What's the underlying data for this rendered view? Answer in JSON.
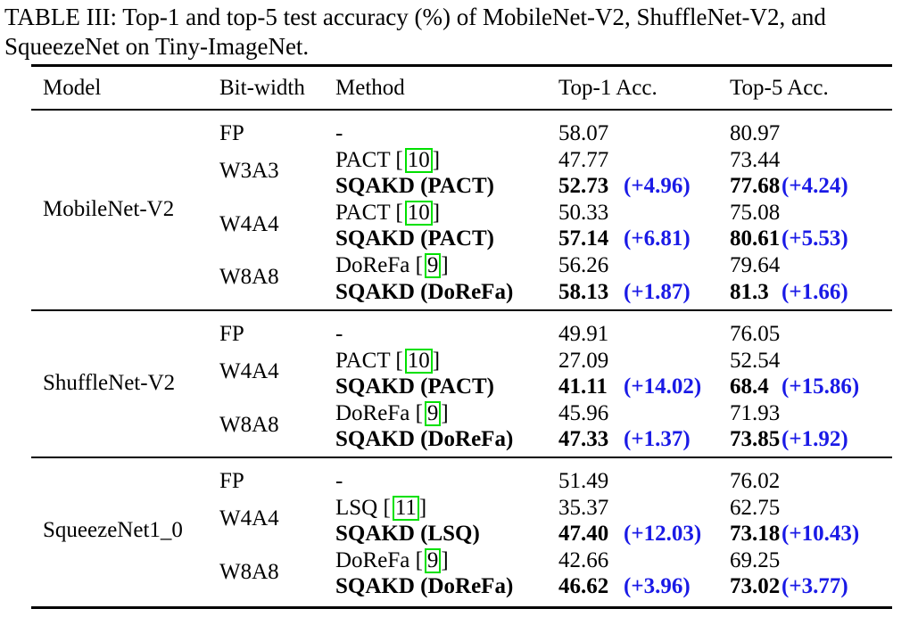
{
  "caption": "TABLE III: Top-1 and top-5 test accuracy (%) of MobileNet-V2, ShuffleNet-V2, and SqueezeNet on Tiny-ImageNet.",
  "headers": [
    "Model",
    "Bit-width",
    "Method",
    "Top-1 Acc.",
    "Top-5 Acc."
  ],
  "groups": [
    {
      "model": "MobileNet-V2",
      "rows": [
        {
          "bit": "FP",
          "method": "-",
          "ref": "",
          "top1": "58.07",
          "d1": "",
          "top5": "80.97",
          "d5": "",
          "bold": false
        },
        {
          "bit": "W3A3",
          "method": "PACT",
          "ref": "10",
          "top1": "47.77",
          "d1": "",
          "top5": "73.44",
          "d5": "",
          "bold": false
        },
        {
          "bit": "",
          "method": "SQAKD (PACT)",
          "ref": "",
          "top1": "52.73",
          "d1": "(+4.96)",
          "top5": "77.68",
          "d5": "(+4.24)",
          "bold": true
        },
        {
          "bit": "W4A4",
          "method": "PACT",
          "ref": "10",
          "top1": "50.33",
          "d1": "",
          "top5": "75.08",
          "d5": "",
          "bold": false
        },
        {
          "bit": "",
          "method": "SQAKD (PACT)",
          "ref": "",
          "top1": "57.14",
          "d1": "(+6.81)",
          "top5": "80.61",
          "d5": "(+5.53)",
          "bold": true
        },
        {
          "bit": "W8A8",
          "method": "DoReFa",
          "ref": "9",
          "top1": "56.26",
          "d1": "",
          "top5": "79.64",
          "d5": "",
          "bold": false
        },
        {
          "bit": "",
          "method": "SQAKD (DoReFa)",
          "ref": "",
          "top1": "58.13",
          "d1": "(+1.87)",
          "top5": "81.3",
          "d5": "(+1.66)",
          "bold": true
        }
      ]
    },
    {
      "model": "ShuffleNet-V2",
      "rows": [
        {
          "bit": "FP",
          "method": "-",
          "ref": "",
          "top1": "49.91",
          "d1": "",
          "top5": "76.05",
          "d5": "",
          "bold": false
        },
        {
          "bit": "W4A4",
          "method": "PACT",
          "ref": "10",
          "top1": "27.09",
          "d1": "",
          "top5": "52.54",
          "d5": "",
          "bold": false
        },
        {
          "bit": "",
          "method": "SQAKD (PACT)",
          "ref": "",
          "top1": "41.11",
          "d1": "(+14.02)",
          "top5": "68.4",
          "d5": "(+15.86)",
          "bold": true
        },
        {
          "bit": "W8A8",
          "method": "DoReFa",
          "ref": "9",
          "top1": "45.96",
          "d1": "",
          "top5": "71.93",
          "d5": "",
          "bold": false
        },
        {
          "bit": "",
          "method": "SQAKD (DoReFa)",
          "ref": "",
          "top1": "47.33",
          "d1": "(+1.37)",
          "top5": "73.85",
          "d5": "(+1.92)",
          "bold": true
        }
      ]
    },
    {
      "model": "SqueezeNet1_0",
      "rows": [
        {
          "bit": "FP",
          "method": "-",
          "ref": "",
          "top1": "51.49",
          "d1": "",
          "top5": "76.02",
          "d5": "",
          "bold": false
        },
        {
          "bit": "W4A4",
          "method": "LSQ",
          "ref": "11",
          "top1": "35.37",
          "d1": "",
          "top5": "62.75",
          "d5": "",
          "bold": false
        },
        {
          "bit": "",
          "method": "SQAKD (LSQ)",
          "ref": "",
          "top1": "47.40",
          "d1": "(+12.03)",
          "top5": "73.18",
          "d5": "(+10.43)",
          "bold": true
        },
        {
          "bit": "W8A8",
          "method": "DoReFa",
          "ref": "9",
          "top1": "42.66",
          "d1": "",
          "top5": "69.25",
          "d5": "",
          "bold": false
        },
        {
          "bit": "",
          "method": "SQAKD (DoReFa)",
          "ref": "",
          "top1": "46.62",
          "d1": "(+3.96)",
          "top5": "73.02",
          "d5": "(+3.77)",
          "bold": true
        }
      ]
    }
  ]
}
